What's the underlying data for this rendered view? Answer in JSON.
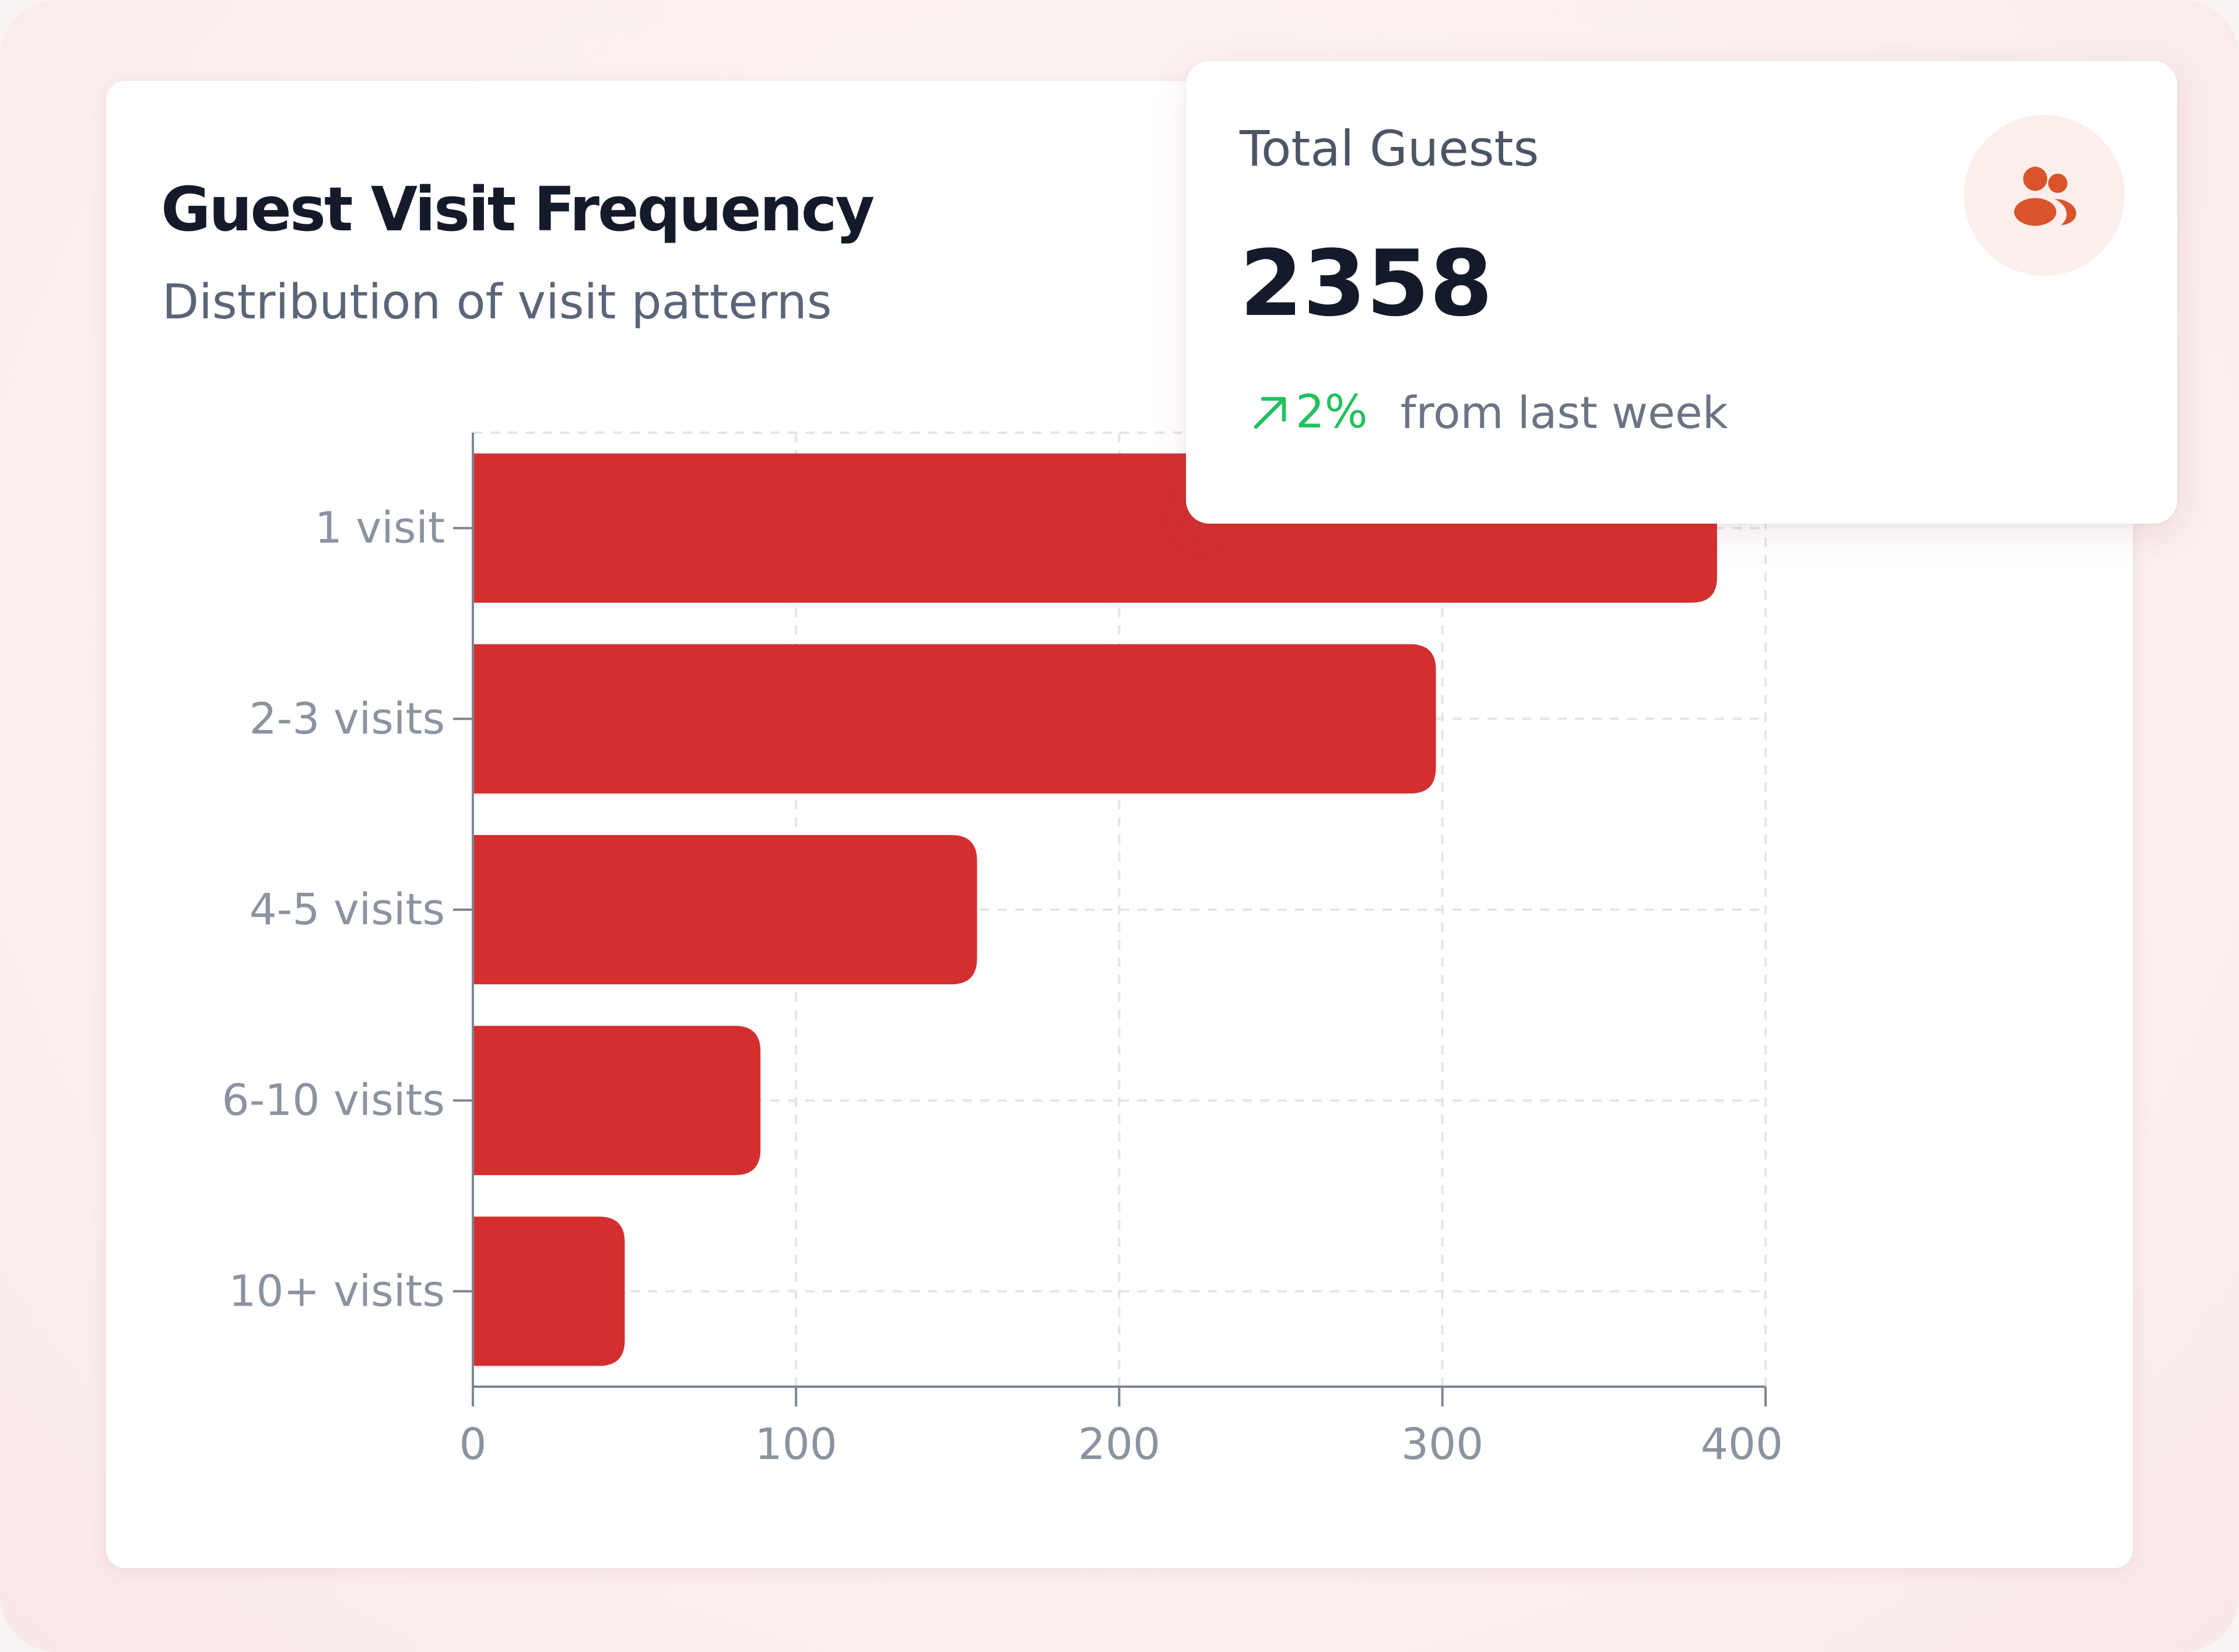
{
  "chart_data": {
    "type": "bar",
    "orientation": "horizontal",
    "title": "Guest Visit Frequency",
    "subtitle": "Distribution of visit patterns",
    "categories": [
      "1 visit",
      "2-3 visits",
      "4-5 visits",
      "6-10 visits",
      "10+ visits"
    ],
    "values": [
      385,
      298,
      156,
      89,
      47
    ],
    "xlim": [
      0,
      400
    ],
    "xticks": [
      0,
      100,
      200,
      300,
      400
    ],
    "xlabel": "",
    "ylabel": "",
    "grid": true,
    "bar_color": "#d32f2f"
  },
  "stat_card": {
    "label": "Total Guests",
    "value": "2358",
    "trend_value": "2%",
    "trend_caption": "from last week",
    "trend_direction": "up",
    "trend_color": "#22c15e",
    "icon": "users-icon",
    "icon_color": "#d9542a"
  }
}
